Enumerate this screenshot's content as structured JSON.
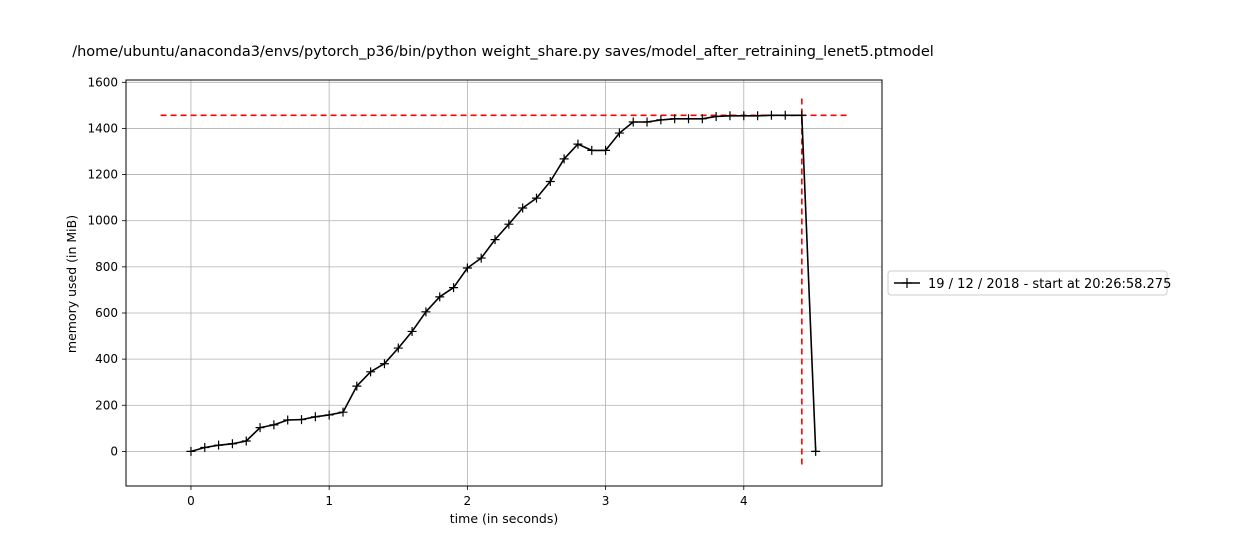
{
  "chart_data": {
    "type": "line",
    "title": "/home/ubuntu/anaconda3/envs/pytorch_p36/bin/python weight_share.py saves/model_after_retraining_lenet5.ptmodel",
    "xlabel": "time (in seconds)",
    "ylabel": "memory used (in MiB)",
    "xlim": [
      -0.47,
      5.0
    ],
    "ylim": [
      -150,
      1610
    ],
    "xticks": [
      0,
      1,
      2,
      3,
      4
    ],
    "yticks": [
      0,
      200,
      400,
      600,
      800,
      1000,
      1200,
      1400,
      1600
    ],
    "grid": true,
    "legend_position": "outside-right",
    "series": [
      {
        "name": "19 / 12 / 2018 - start at 20:26:58.275",
        "color": "#000000",
        "marker": "plus",
        "x": [
          0.0,
          0.1,
          0.2,
          0.3,
          0.4,
          0.5,
          0.6,
          0.7,
          0.8,
          0.9,
          1.0,
          1.1,
          1.2,
          1.3,
          1.4,
          1.5,
          1.6,
          1.7,
          1.8,
          1.9,
          2.0,
          2.1,
          2.2,
          2.3,
          2.4,
          2.5,
          2.6,
          2.7,
          2.8,
          2.9,
          3.0,
          3.1,
          3.2,
          3.3,
          3.4,
          3.5,
          3.6,
          3.7,
          3.8,
          3.9,
          4.0,
          4.1,
          4.2,
          4.3,
          4.42,
          4.52
        ],
        "y": [
          0,
          17,
          27,
          33,
          45,
          103,
          115,
          136,
          138,
          150,
          158,
          170,
          283,
          345,
          380,
          448,
          520,
          605,
          670,
          710,
          795,
          838,
          918,
          985,
          1055,
          1098,
          1170,
          1268,
          1332,
          1305,
          1305,
          1380,
          1428,
          1428,
          1437,
          1442,
          1442,
          1442,
          1452,
          1455,
          1455,
          1455,
          1457,
          1457,
          1457,
          0
        ]
      }
    ],
    "reference_lines": [
      {
        "orientation": "horizontal",
        "value": 1457,
        "from": -0.22,
        "to": 4.75,
        "color": "#ff0000",
        "style": "dashed"
      },
      {
        "orientation": "vertical",
        "value": 4.42,
        "from": -70,
        "to": 1530,
        "color": "#ff0000",
        "style": "dashed"
      }
    ]
  }
}
